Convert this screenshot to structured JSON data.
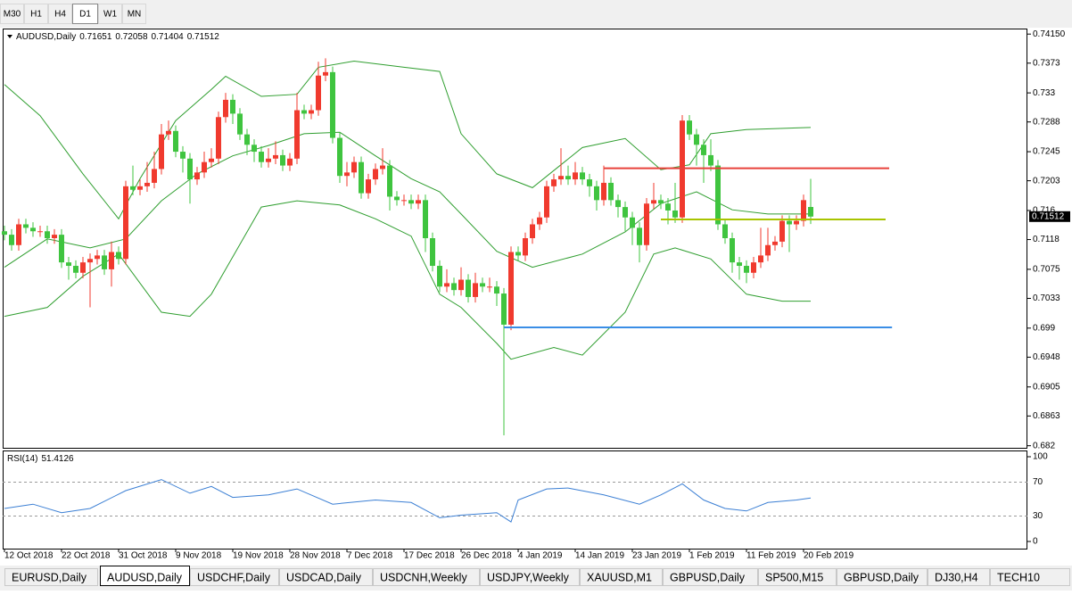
{
  "toolbar": {
    "timeframes": [
      "M30",
      "H1",
      "H4",
      "D1",
      "W1",
      "MN"
    ],
    "active": 3
  },
  "tabs": {
    "items": [
      "EURUSD,Daily",
      "AUDUSD,Daily",
      "USDCHF,Daily",
      "USDCAD,Daily",
      "USDCNH,Weekly",
      "USDJPY,Weekly",
      "XAUUSD,M1",
      "GBPUSD,Daily",
      "SP500,M15",
      "GBPUSD,Daily",
      "DJ30,H4",
      "TECH10"
    ],
    "active": 1
  },
  "chart_data": [
    {
      "type": "candlestick",
      "title": "AUDUSD,Daily",
      "bull_color": "#f03a2e",
      "bear_color": "#3fc43f",
      "open": [
        0.713,
        0.7125,
        0.711,
        0.714,
        0.7135,
        0.713,
        0.713,
        0.712,
        0.7125,
        0.7085,
        0.708,
        0.707,
        0.7085,
        0.709,
        0.7095,
        0.7075,
        0.71,
        0.709,
        0.7195,
        0.719,
        0.7195,
        0.72,
        0.722,
        0.727,
        0.7275,
        0.7245,
        0.7235,
        0.7205,
        0.7215,
        0.723,
        0.7235,
        0.7295,
        0.732,
        0.73,
        0.727,
        0.7255,
        0.7245,
        0.723,
        0.7235,
        0.724,
        0.7225,
        0.7235,
        0.7305,
        0.73,
        0.7305,
        0.7355,
        0.736,
        0.7265,
        0.721,
        0.7215,
        0.723,
        0.7185,
        0.7205,
        0.722,
        0.7225,
        0.718,
        0.7175,
        0.7175,
        0.717,
        0.7175,
        0.712,
        0.708,
        0.705,
        0.7055,
        0.7045,
        0.706,
        0.7035,
        0.7055,
        0.705,
        0.705,
        0.704,
        0.6995,
        0.71,
        0.7095,
        0.712,
        0.714,
        0.715,
        0.7195,
        0.7205,
        0.721,
        0.7205,
        0.7215,
        0.7205,
        0.7195,
        0.7175,
        0.72,
        0.7175,
        0.7165,
        0.715,
        0.7135,
        0.711,
        0.717,
        0.7175,
        0.717,
        0.716,
        0.715,
        0.729,
        0.727,
        0.7255,
        0.724,
        0.7225,
        0.714,
        0.712,
        0.7085,
        0.708,
        0.707,
        0.7085,
        0.7095,
        0.711,
        0.7115,
        0.7145,
        0.714,
        0.7145,
        0.71651
      ],
      "high": [
        0.7138,
        0.7133,
        0.7148,
        0.7148,
        0.7143,
        0.7138,
        0.7138,
        0.7133,
        0.7133,
        0.7093,
        0.7088,
        0.7093,
        0.7098,
        0.7103,
        0.7103,
        0.7115,
        0.7108,
        0.7203,
        0.7225,
        0.7205,
        0.723,
        0.7245,
        0.7285,
        0.729,
        0.7283,
        0.7253,
        0.7243,
        0.7223,
        0.7245,
        0.725,
        0.7303,
        0.733,
        0.7328,
        0.7308,
        0.7278,
        0.7263,
        0.7253,
        0.725,
        0.726,
        0.7248,
        0.7243,
        0.733,
        0.7313,
        0.7313,
        0.7375,
        0.738,
        0.7368,
        0.7273,
        0.723,
        0.7238,
        0.7238,
        0.7213,
        0.7228,
        0.725,
        0.7233,
        0.7188,
        0.7183,
        0.7183,
        0.7183,
        0.7183,
        0.7128,
        0.7088,
        0.7075,
        0.7063,
        0.7078,
        0.7068,
        0.707,
        0.7063,
        0.7063,
        0.7058,
        0.7048,
        0.7108,
        0.7108,
        0.7128,
        0.7148,
        0.7158,
        0.7203,
        0.7213,
        0.725,
        0.7225,
        0.723,
        0.7223,
        0.7213,
        0.7203,
        0.7225,
        0.7208,
        0.7183,
        0.7173,
        0.7158,
        0.7143,
        0.7178,
        0.72,
        0.7183,
        0.7178,
        0.72,
        0.7298,
        0.7298,
        0.7278,
        0.7263,
        0.7263,
        0.7233,
        0.7148,
        0.7128,
        0.7093,
        0.7088,
        0.7093,
        0.7135,
        0.7135,
        0.7123,
        0.7153,
        0.7153,
        0.7153,
        0.7183,
        0.72058
      ],
      "low": [
        0.7117,
        0.7102,
        0.7102,
        0.7127,
        0.7122,
        0.7122,
        0.7112,
        0.7112,
        0.7077,
        0.706,
        0.7062,
        0.7062,
        0.702,
        0.7082,
        0.7067,
        0.705,
        0.7082,
        0.7082,
        0.7182,
        0.7182,
        0.7187,
        0.7192,
        0.7212,
        0.7262,
        0.7237,
        0.7215,
        0.717,
        0.7197,
        0.7207,
        0.7222,
        0.7227,
        0.7287,
        0.7285,
        0.7262,
        0.724,
        0.723,
        0.7222,
        0.7222,
        0.7227,
        0.7217,
        0.7217,
        0.7227,
        0.7292,
        0.7292,
        0.7297,
        0.7347,
        0.7257,
        0.72,
        0.7195,
        0.7207,
        0.7177,
        0.7177,
        0.7197,
        0.7212,
        0.716,
        0.7167,
        0.7167,
        0.7162,
        0.7162,
        0.71,
        0.7072,
        0.7042,
        0.7042,
        0.7037,
        0.7037,
        0.7027,
        0.7027,
        0.7042,
        0.7042,
        0.7022,
        0.6835,
        0.6987,
        0.7087,
        0.7087,
        0.7112,
        0.7132,
        0.7142,
        0.7187,
        0.7197,
        0.7197,
        0.7197,
        0.7197,
        0.718,
        0.716,
        0.7167,
        0.7167,
        0.715,
        0.713,
        0.711,
        0.7085,
        0.7102,
        0.7162,
        0.7162,
        0.714,
        0.7142,
        0.7142,
        0.7262,
        0.7225,
        0.72,
        0.7217,
        0.7132,
        0.7112,
        0.707,
        0.706,
        0.7055,
        0.7062,
        0.7077,
        0.7087,
        0.7102,
        0.7107,
        0.71,
        0.7132,
        0.7137,
        0.71404
      ],
      "close": [
        0.7125,
        0.711,
        0.714,
        0.7135,
        0.713,
        0.713,
        0.712,
        0.7125,
        0.7085,
        0.708,
        0.707,
        0.7085,
        0.709,
        0.7095,
        0.7075,
        0.71,
        0.709,
        0.7195,
        0.719,
        0.7195,
        0.72,
        0.722,
        0.727,
        0.7275,
        0.7245,
        0.7235,
        0.7205,
        0.7215,
        0.723,
        0.7235,
        0.7295,
        0.732,
        0.73,
        0.727,
        0.7255,
        0.7245,
        0.723,
        0.7235,
        0.724,
        0.7225,
        0.7235,
        0.7305,
        0.73,
        0.7305,
        0.7355,
        0.736,
        0.7265,
        0.721,
        0.7215,
        0.723,
        0.7185,
        0.7205,
        0.722,
        0.7225,
        0.718,
        0.7175,
        0.7175,
        0.717,
        0.7175,
        0.712,
        0.708,
        0.705,
        0.7055,
        0.7045,
        0.706,
        0.7035,
        0.7055,
        0.705,
        0.705,
        0.704,
        0.6995,
        0.71,
        0.7095,
        0.712,
        0.714,
        0.715,
        0.7195,
        0.7205,
        0.721,
        0.7205,
        0.7215,
        0.7205,
        0.7195,
        0.7175,
        0.72,
        0.7175,
        0.7165,
        0.715,
        0.7135,
        0.711,
        0.717,
        0.7175,
        0.717,
        0.716,
        0.715,
        0.729,
        0.727,
        0.7255,
        0.724,
        0.7225,
        0.714,
        0.712,
        0.7085,
        0.708,
        0.707,
        0.7085,
        0.7095,
        0.711,
        0.7115,
        0.7145,
        0.714,
        0.7145,
        0.7175,
        0.71512
      ],
      "bands": [
        {
          "color": "#2f9e2f",
          "x": [
            0,
            5,
            11,
            16,
            19,
            24,
            29,
            31,
            36,
            41,
            44,
            49,
            56,
            61,
            64,
            69,
            74,
            81,
            87,
            92,
            96,
            99,
            104,
            113
          ],
          "values": [
            0.7342,
            0.7297,
            0.7213,
            0.7148,
            0.7206,
            0.729,
            0.7335,
            0.7354,
            0.7325,
            0.7328,
            0.7367,
            0.7376,
            0.7367,
            0.7361,
            0.7271,
            0.7213,
            0.7193,
            0.7251,
            0.7264,
            0.7219,
            0.7226,
            0.7271,
            0.7277,
            0.728
          ]
        },
        {
          "color": "#2f9e2f",
          "x": [
            0,
            6,
            12,
            17,
            22,
            27,
            32,
            37,
            42,
            47,
            52,
            57,
            61,
            64,
            69,
            74,
            81,
            87,
            92,
            97,
            102,
            107,
            113
          ],
          "values": [
            0.7078,
            0.7119,
            0.7106,
            0.7119,
            0.7174,
            0.7213,
            0.7239,
            0.7254,
            0.7271,
            0.7273,
            0.7239,
            0.7206,
            0.7187,
            0.7155,
            0.7101,
            0.7078,
            0.7097,
            0.7129,
            0.717,
            0.7187,
            0.7161,
            0.7155,
            0.7155
          ]
        },
        {
          "color": "#2f9e2f",
          "x": [
            0,
            6,
            11,
            16,
            22,
            26,
            29,
            36,
            41,
            47,
            52,
            57,
            61,
            64,
            69,
            71,
            77,
            81,
            87,
            91,
            94,
            99,
            104,
            109,
            113
          ],
          "values": [
            0.7007,
            0.702,
            0.7065,
            0.7097,
            0.7013,
            0.7007,
            0.7039,
            0.7165,
            0.7174,
            0.7168,
            0.7148,
            0.7123,
            0.7039,
            0.702,
            0.6968,
            0.6945,
            0.6962,
            0.6951,
            0.7013,
            0.7097,
            0.7106,
            0.709,
            0.7039,
            0.7029,
            0.7029
          ]
        }
      ],
      "hlines": [
        {
          "value": 0.7221,
          "color": "#e8413b",
          "x": [
            84,
            124
          ]
        },
        {
          "value": 0.7147,
          "color": "#a8c400",
          "x": [
            92,
            123.5
          ]
        },
        {
          "value": 0.6991,
          "color": "#3a8ee6",
          "x": [
            70,
            124.4
          ]
        }
      ],
      "xlim": [
        -0.25,
        143.375
      ],
      "xticks": [
        {
          "value": 0,
          "label": "12 Oct 2018"
        },
        {
          "value": 8,
          "label": "22 Oct 2018"
        },
        {
          "value": 16,
          "label": "31 Oct 2018"
        },
        {
          "value": 24,
          "label": "9 Nov 2018"
        },
        {
          "value": 32,
          "label": "19 Nov 2018"
        },
        {
          "value": 40,
          "label": "28 Nov 2018"
        },
        {
          "value": 48,
          "label": "7 Dec 2018"
        },
        {
          "value": 56,
          "label": "17 Dec 2018"
        },
        {
          "value": 64,
          "label": "26 Dec 2018"
        },
        {
          "value": 72,
          "label": "4 Jan 2019"
        },
        {
          "value": 80,
          "label": "14 Jan 2019"
        },
        {
          "value": 88,
          "label": "23 Jan 2019"
        },
        {
          "value": 96,
          "label": "1 Feb 2019"
        },
        {
          "value": 104,
          "label": "11 Feb 2019"
        },
        {
          "value": 112,
          "label": "20 Feb 2019"
        }
      ],
      "ylim": [
        0.6817,
        0.7423
      ],
      "yticks": [
        {
          "value": 0.7415,
          "label": "0.74150"
        },
        0.7373,
        0.733,
        0.7288,
        0.7245,
        0.7203,
        0.716,
        0.7118,
        0.7075,
        0.7033,
        0.699,
        0.6948,
        0.6905,
        0.6863,
        0.682
      ]
    },
    {
      "type": "line",
      "title": "RSI(14)",
      "color": "#3b7fd4",
      "x": [
        0,
        4,
        8,
        12,
        17,
        22,
        26,
        29,
        32,
        37,
        41,
        46,
        52,
        57,
        61,
        64,
        69,
        71,
        72,
        76,
        79,
        84,
        89,
        92,
        95,
        98,
        101,
        104,
        107,
        111,
        113
      ],
      "values": [
        39,
        44,
        34,
        39,
        60,
        73,
        57,
        65,
        52,
        55,
        62,
        44,
        49,
        46,
        28,
        31,
        34,
        23,
        49,
        62,
        63,
        55,
        44,
        55,
        68,
        49,
        39,
        36,
        46,
        49,
        51.4126
      ],
      "ylim": [
        0,
        100
      ],
      "yticks": [
        100,
        70,
        30,
        0
      ]
    }
  ]
}
